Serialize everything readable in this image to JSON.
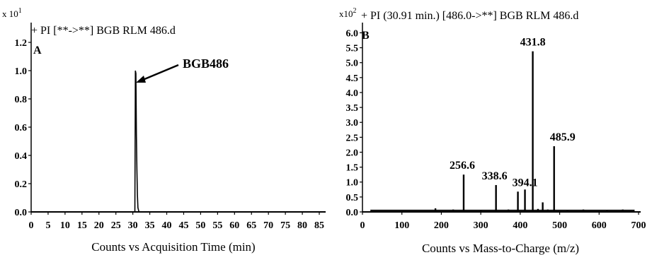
{
  "chart_data": [
    {
      "type": "line",
      "panel_label": "A",
      "title": "+ PI [**->**] BGB RLM 486.d",
      "xlabel": "Counts vs Acquisition Time (min)",
      "y_multiplier_base": "x 10",
      "y_multiplier_exp": "1",
      "xlim": [
        0,
        85
      ],
      "ylim": [
        0,
        1.3
      ],
      "xticks": [
        0,
        5,
        10,
        15,
        20,
        25,
        30,
        35,
        40,
        45,
        50,
        55,
        60,
        65,
        70,
        75,
        80,
        85
      ],
      "yticks": [
        "0.0",
        "0.2",
        "0.4",
        "0.6",
        "0.8",
        "1.0",
        "1.2"
      ],
      "series": [
        {
          "x": [
            0,
            30.6,
            30.75,
            30.9,
            31.05,
            31.2,
            31.35,
            31.5,
            31.8,
            85
          ],
          "y": [
            0,
            0,
            1.0,
            0.98,
            0.55,
            0.3,
            0.12,
            0.03,
            0,
            0
          ]
        }
      ],
      "annotation": {
        "text": "BGB486",
        "x": 30.9,
        "y": 0.92
      }
    },
    {
      "type": "bar",
      "panel_label": "B",
      "title": "+ PI (30.91 min.) [486.0->**] BGB RLM 486.d",
      "xlabel": "Counts vs Mass-to-Charge (m/z)",
      "y_multiplier_base": "x10",
      "y_multiplier_exp": "2",
      "xlim": [
        0,
        700
      ],
      "ylim": [
        0,
        6.2
      ],
      "xticks": [
        0,
        100,
        200,
        300,
        400,
        500,
        600,
        700
      ],
      "yticks": [
        "0.0",
        "0.5",
        "1.0",
        "1.5",
        "2.0",
        "2.5",
        "3.0",
        "3.5",
        "4.0",
        "4.5",
        "5.0",
        "5.5",
        "6.0"
      ],
      "peaks": [
        {
          "mz": 256.6,
          "y": 1.25,
          "label": "256.6"
        },
        {
          "mz": 338.6,
          "y": 0.9,
          "label": "338.6"
        },
        {
          "mz": 394.1,
          "y": 0.68,
          "label": "394.1"
        },
        {
          "mz": 412.0,
          "y": 0.75
        },
        {
          "mz": 431.8,
          "y": 5.38,
          "label": "431.8"
        },
        {
          "mz": 457.0,
          "y": 0.32
        },
        {
          "mz": 485.9,
          "y": 2.2,
          "label": "485.9"
        },
        {
          "mz": 185.0,
          "y": 0.12
        },
        {
          "mz": 230.0,
          "y": 0.08
        },
        {
          "mz": 300.0,
          "y": 0.07
        },
        {
          "mz": 370.0,
          "y": 0.08
        },
        {
          "mz": 445.0,
          "y": 0.1
        },
        {
          "mz": 470.0,
          "y": 0.08
        },
        {
          "mz": 520.0,
          "y": 0.07
        },
        {
          "mz": 560.0,
          "y": 0.08
        },
        {
          "mz": 620.0,
          "y": 0.07
        },
        {
          "mz": 660.0,
          "y": 0.08
        }
      ],
      "baseline": 0.05
    }
  ]
}
